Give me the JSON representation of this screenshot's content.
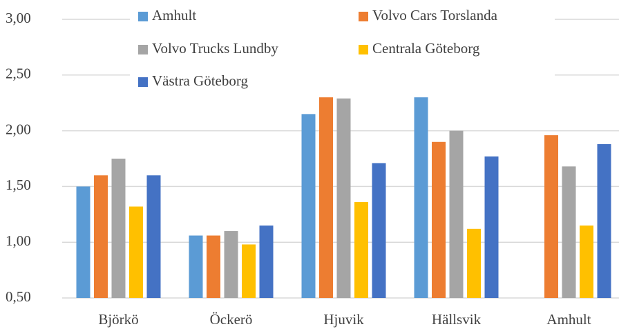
{
  "chart_data": {
    "type": "bar",
    "categories": [
      "Björkö",
      "Öckerö",
      "Hjuvik",
      "Hällsvik",
      "Amhult"
    ],
    "series": [
      {
        "name": "Amhult",
        "color": "#5b9bd5",
        "values": [
          1.5,
          1.06,
          2.15,
          2.3,
          null
        ]
      },
      {
        "name": "Volvo Cars Torslanda",
        "color": "#ed7d31",
        "values": [
          1.6,
          1.06,
          2.3,
          1.9,
          1.96
        ]
      },
      {
        "name": "Volvo Trucks Lundby",
        "color": "#a5a5a5",
        "values": [
          1.75,
          1.1,
          2.29,
          2.0,
          1.68
        ]
      },
      {
        "name": "Centrala Göteborg",
        "color": "#ffc000",
        "values": [
          1.32,
          0.98,
          1.36,
          1.12,
          1.15
        ]
      },
      {
        "name": "Västra Göteborg",
        "color": "#4472c4",
        "values": [
          1.6,
          1.15,
          1.71,
          1.77,
          1.88
        ]
      }
    ],
    "ylim": [
      0.5,
      3.0
    ],
    "yticks": [
      {
        "value": 0.5,
        "label": "0,50"
      },
      {
        "value": 1.0,
        "label": "1,00"
      },
      {
        "value": 1.5,
        "label": "1,50"
      },
      {
        "value": 2.0,
        "label": "2,00"
      },
      {
        "value": 2.5,
        "label": "2,50"
      },
      {
        "value": 3.0,
        "label": "3,00"
      }
    ],
    "grid": true,
    "legend": "top"
  }
}
